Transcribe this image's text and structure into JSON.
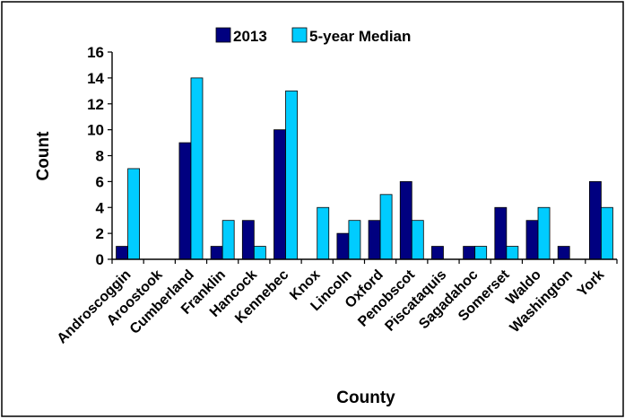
{
  "chart_data": {
    "type": "bar",
    "title": "",
    "xlabel": "County",
    "ylabel": "Count",
    "ylim": [
      0,
      16
    ],
    "yticks": [
      0,
      2,
      4,
      6,
      8,
      10,
      12,
      14,
      16
    ],
    "grid": false,
    "legend_position": "top",
    "categories": [
      "Androscoggin",
      "Aroostook",
      "Cumberland",
      "Franklin",
      "Hancock",
      "Kennebec",
      "Knox",
      "Lincoln",
      "Oxford",
      "Penobscot",
      "Piscataquis",
      "Sagadahoc",
      "Somerset",
      "Waldo",
      "Washington",
      "York"
    ],
    "series": [
      {
        "name": "2013",
        "color": "#000080",
        "values": [
          1,
          0,
          9,
          1,
          3,
          10,
          0,
          2,
          3,
          6,
          1,
          1,
          4,
          3,
          1,
          6
        ]
      },
      {
        "name": "5-year Median",
        "color": "#00CCFF",
        "values": [
          7,
          0,
          14,
          3,
          1,
          13,
          4,
          3,
          5,
          3,
          0,
          1,
          1,
          4,
          0,
          4
        ]
      }
    ]
  }
}
